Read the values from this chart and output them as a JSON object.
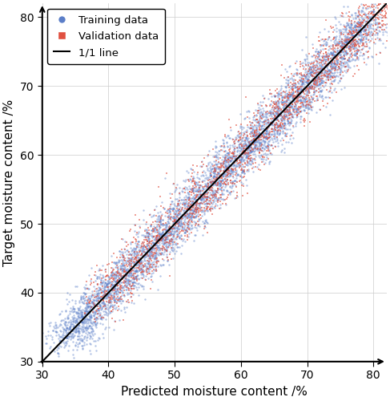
{
  "xlabel": "Predicted moisture content /%",
  "ylabel": "Target moisture content /%",
  "xlim": [
    30,
    82
  ],
  "ylim": [
    30,
    82
  ],
  "xticks": [
    30,
    40,
    50,
    60,
    70,
    80
  ],
  "yticks": [
    30,
    40,
    50,
    60,
    70,
    80
  ],
  "line_color": "black",
  "train_color": "#5b7ec8",
  "val_color": "#e05040",
  "train_label": "Training data",
  "val_label": "Validation data",
  "line_label": "1/1 line",
  "n_train": 5000,
  "n_val": 2000,
  "seed": 42,
  "alpha_train": 0.45,
  "alpha_val": 0.55,
  "marker_size_train": 3,
  "marker_size_val": 4,
  "noise_train": 1.5,
  "noise_val": 1.6,
  "train_range_low": 33,
  "train_range_high": 80,
  "val_range_low": 38,
  "val_range_high": 82,
  "figsize": [
    4.87,
    5.0
  ],
  "dpi": 100
}
